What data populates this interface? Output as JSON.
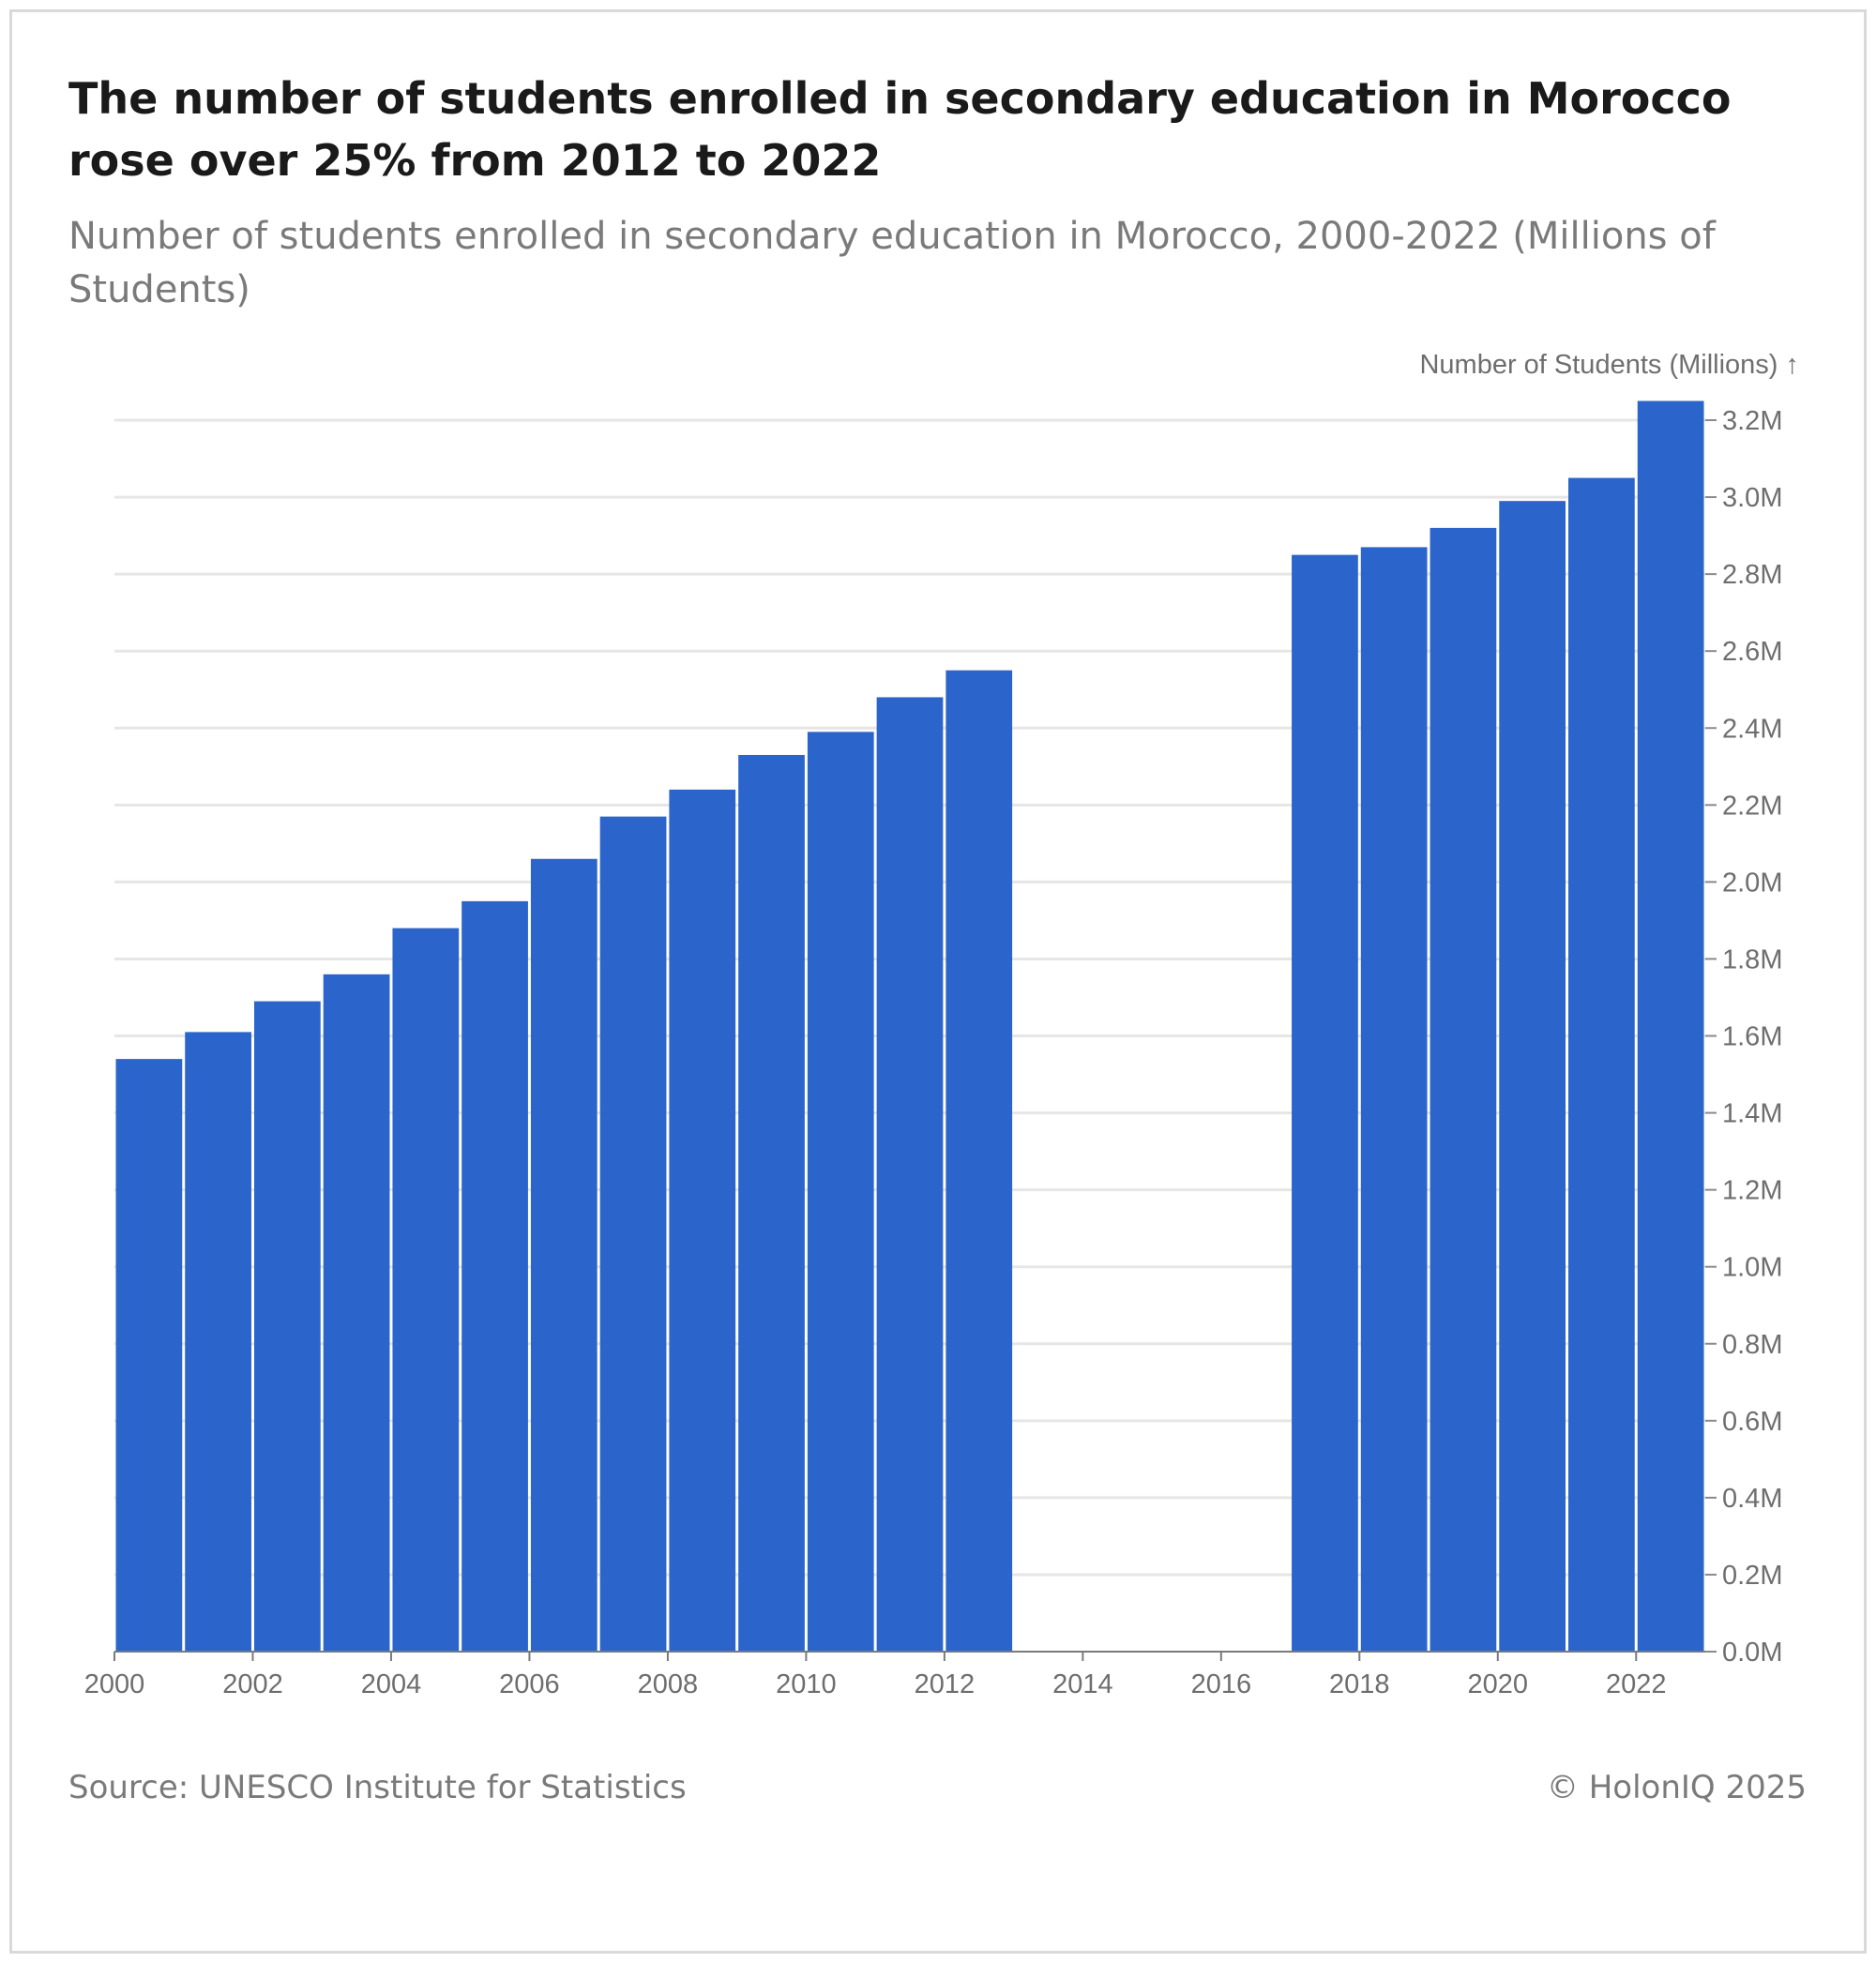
{
  "title": "The number of students enrolled in secondary education in Morocco rose over 25% from 2012 to 2022",
  "subtitle": "Number of students enrolled in secondary education in Morocco, 2000-2022 (Millions of Students)",
  "source": "Source: UNESCO Institute for Statistics",
  "copyright": "© HolonIQ 2025",
  "colors": {
    "bar": "#2b65cc",
    "grid": "#e6e6e6",
    "axis_text": "#6e6e6e",
    "title": "#1a1a1a",
    "subtitle": "#7a7a7a"
  },
  "chart_data": {
    "type": "bar",
    "ylabel": "Number of Students (Millions) ↑",
    "y_axis_position": "right",
    "grid": true,
    "xlim": [
      2000,
      2023
    ],
    "ylim": [
      0,
      3.2
    ],
    "x_ticks": [
      2000,
      2002,
      2004,
      2006,
      2008,
      2010,
      2012,
      2014,
      2016,
      2018,
      2020,
      2022
    ],
    "y_ticks": [
      0.0,
      0.2,
      0.4,
      0.6,
      0.8,
      1.0,
      1.2,
      1.4,
      1.6,
      1.8,
      2.0,
      2.2,
      2.4,
      2.6,
      2.8,
      3.0,
      3.2
    ],
    "y_tick_labels": [
      "0.0M",
      "0.2M",
      "0.4M",
      "0.6M",
      "0.8M",
      "1.0M",
      "1.2M",
      "1.4M",
      "1.6M",
      "1.8M",
      "2.0M",
      "2.2M",
      "2.4M",
      "2.6M",
      "2.8M",
      "3.0M",
      "3.2M"
    ],
    "series": [
      {
        "x": [
          2000,
          2001,
          2002,
          2003,
          2004,
          2005,
          2006,
          2007,
          2008,
          2009,
          2010,
          2011,
          2012,
          2017,
          2018,
          2019,
          2020,
          2021,
          2022
        ],
        "values": [
          1.54,
          1.61,
          1.69,
          1.76,
          1.88,
          1.95,
          2.06,
          2.17,
          2.24,
          2.33,
          2.39,
          2.48,
          2.55,
          2.85,
          2.87,
          2.92,
          2.99,
          3.05,
          3.25
        ]
      }
    ]
  }
}
